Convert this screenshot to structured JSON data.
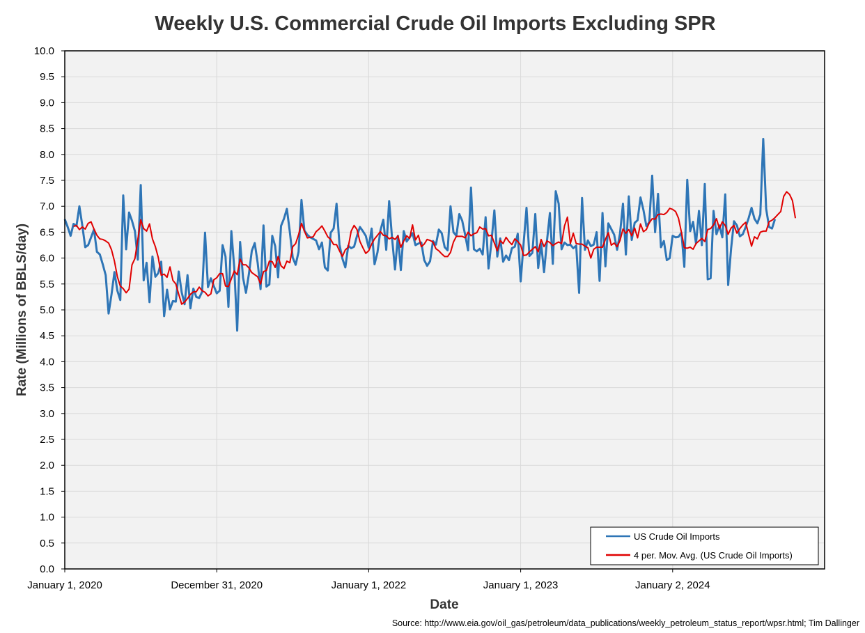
{
  "chart_data": {
    "type": "line",
    "title": "Weekly U.S. Commercial Crude Oil Imports Excluding SPR",
    "xlabel": "Date",
    "ylabel": "Rate (Millions of BBLS/day)",
    "ylim": [
      0,
      10
    ],
    "y_ticks": [
      "0.0",
      "0.5",
      "1.0",
      "1.5",
      "2.0",
      "2.5",
      "3.0",
      "3.5",
      "4.0",
      "4.5",
      "5.0",
      "5.5",
      "6.0",
      "6.5",
      "7.0",
      "7.5",
      "8.0",
      "8.5",
      "9.0",
      "9.5",
      "10.0"
    ],
    "x_tick_labels": [
      "January 1, 2020",
      "December 31, 2020",
      "January 1, 2022",
      "January 1, 2023",
      "January 2, 2024"
    ],
    "x_tick_weeks": [
      0,
      52,
      104,
      156,
      208
    ],
    "x_range_weeks": [
      0,
      260
    ],
    "grid": true,
    "legend_position": "bottom-right",
    "series": [
      {
        "name": "US Crude Oil Imports",
        "color": "#2E75B6",
        "start": "January 1, 2020",
        "interval": "weekly",
        "values": [
          6.75,
          6.6,
          6.43,
          6.66,
          6.62,
          7.0,
          6.63,
          6.21,
          6.25,
          6.4,
          6.55,
          6.12,
          6.07,
          5.88,
          5.67,
          4.93,
          5.3,
          5.73,
          5.37,
          5.19,
          7.21,
          6.17,
          6.88,
          6.72,
          6.52,
          5.97,
          7.41,
          5.57,
          5.91,
          5.15,
          6.03,
          5.64,
          5.71,
          5.93,
          4.88,
          5.39,
          5.01,
          5.17,
          5.16,
          5.74,
          5.34,
          5.11,
          5.67,
          5.03,
          5.41,
          5.25,
          5.23,
          5.35,
          6.49,
          5.44,
          5.61,
          5.46,
          5.32,
          5.37,
          6.25,
          6.03,
          5.06,
          6.52,
          5.81,
          4.6,
          6.31,
          5.62,
          5.33,
          5.69,
          6.14,
          6.29,
          5.91,
          5.4,
          6.63,
          5.45,
          5.49,
          6.43,
          6.23,
          5.63,
          6.62,
          6.76,
          6.95,
          6.51,
          6.01,
          5.87,
          6.12,
          7.12,
          6.53,
          6.45,
          6.4,
          6.37,
          6.34,
          6.17,
          6.3,
          5.82,
          5.76,
          6.49,
          6.57,
          7.05,
          6.26,
          5.99,
          5.82,
          6.24,
          6.19,
          6.22,
          6.43,
          6.6,
          6.52,
          6.43,
          6.2,
          6.57,
          5.88,
          6.11,
          6.53,
          6.74,
          6.16,
          7.1,
          6.38,
          5.78,
          6.43,
          5.77,
          6.52,
          6.32,
          6.4,
          6.48,
          6.25,
          6.28,
          6.3,
          5.96,
          5.85,
          5.94,
          6.33,
          6.26,
          6.55,
          6.48,
          6.21,
          6.15,
          7.0,
          6.5,
          6.43,
          6.85,
          6.72,
          6.45,
          6.15,
          7.36,
          6.17,
          6.13,
          6.18,
          6.07,
          6.79,
          5.8,
          6.31,
          6.92,
          6.03,
          6.38,
          5.93,
          6.05,
          5.96,
          6.19,
          6.22,
          6.47,
          5.55,
          6.28,
          6.97,
          6.04,
          6.1,
          6.85,
          5.81,
          6.28,
          5.73,
          6.33,
          6.87,
          5.89,
          7.29,
          7.05,
          6.17,
          6.3,
          6.25,
          6.26,
          6.19,
          6.24,
          5.33,
          7.16,
          6.16,
          6.34,
          6.23,
          6.26,
          6.5,
          5.56,
          6.87,
          5.84,
          6.67,
          6.56,
          6.45,
          6.16,
          6.48,
          7.05,
          6.07,
          7.19,
          6.35,
          6.68,
          6.73,
          7.17,
          6.93,
          6.62,
          6.69,
          7.59,
          6.5,
          7.24,
          6.21,
          6.33,
          5.96,
          6.0,
          6.43,
          6.4,
          6.41,
          6.49,
          5.83,
          7.51,
          6.52,
          6.7,
          6.28,
          6.91,
          6.25,
          7.43,
          5.59,
          5.61,
          6.91,
          6.46,
          6.63,
          6.4,
          7.23,
          5.48,
          6.18,
          6.71,
          6.63,
          6.42,
          6.46,
          6.6,
          6.77,
          6.97,
          6.76,
          6.67,
          6.84,
          8.3,
          6.95,
          6.6,
          6.57,
          6.75
        ]
      },
      {
        "name": "4 per. Mov. Avg. (US Crude Oil Imports)",
        "color": "#E00000",
        "start_week": 3,
        "values": [
          6.61,
          6.63,
          6.55,
          6.6,
          6.56,
          6.67,
          6.7,
          6.56,
          6.44,
          6.37,
          6.36,
          6.33,
          6.29,
          6.16,
          5.94,
          5.64,
          5.46,
          5.41,
          5.33,
          5.4,
          5.87,
          5.99,
          6.36,
          6.74,
          6.57,
          6.52,
          6.66,
          6.37,
          6.22,
          6.01,
          5.67,
          5.69,
          5.63,
          5.83,
          5.57,
          5.5,
          5.3,
          5.11,
          5.15,
          5.22,
          5.3,
          5.35,
          5.35,
          5.44,
          5.37,
          5.34,
          5.27,
          5.31,
          5.58,
          5.62,
          5.7,
          5.7,
          5.46,
          5.45,
          5.6,
          5.75,
          5.68,
          5.98,
          5.87,
          5.87,
          5.81,
          5.72,
          5.68,
          5.64,
          5.5,
          5.74,
          5.76,
          5.94,
          5.93,
          5.82,
          6.03,
          5.85,
          5.8,
          5.94,
          5.91,
          6.22,
          6.28,
          6.45,
          6.67,
          6.52,
          6.39,
          6.4,
          6.41,
          6.51,
          6.56,
          6.62,
          6.52,
          6.41,
          6.36,
          6.26,
          6.26,
          6.14,
          6.03,
          6.16,
          6.21,
          6.52,
          6.63,
          6.55,
          6.32,
          6.2,
          6.09,
          6.14,
          6.27,
          6.37,
          6.44,
          6.51,
          6.44,
          6.43,
          6.37,
          6.4,
          6.36,
          6.43,
          6.21,
          6.33,
          6.43,
          6.38,
          6.64,
          6.35,
          6.44,
          6.22,
          6.27,
          6.36,
          6.34,
          6.31,
          6.18,
          6.14,
          6.08,
          6.03,
          6.03,
          6.11,
          6.31,
          6.42,
          6.42,
          6.42,
          6.39,
          6.5,
          6.43,
          6.47,
          6.49,
          6.6,
          6.56,
          6.57,
          6.43,
          6.44,
          6.29,
          6.14,
          6.34,
          6.28,
          6.4,
          6.32,
          6.26,
          6.37,
          6.32,
          6.25,
          6.05,
          6.06,
          6.12,
          6.17,
          6.22,
          6.12,
          6.36,
          6.22,
          6.33,
          6.3,
          6.24,
          6.28,
          6.31,
          6.28,
          6.62,
          6.79,
          6.28,
          6.48,
          6.28,
          6.27,
          6.27,
          6.23,
          6.2,
          6.0,
          6.17,
          6.21,
          6.21,
          6.21,
          6.36,
          6.49,
          6.25,
          6.29,
          6.22,
          6.34,
          6.56,
          6.48,
          6.55,
          6.43,
          6.58,
          6.39,
          6.66,
          6.51,
          6.55,
          6.68,
          6.76,
          6.75,
          6.84,
          6.85,
          6.84,
          6.88,
          6.96,
          6.94,
          6.9,
          6.77,
          6.5,
          6.2,
          6.19,
          6.21,
          6.17,
          6.28,
          6.33,
          6.38,
          6.32,
          6.55,
          6.57,
          6.64,
          6.76,
          6.57,
          6.7,
          6.63,
          6.46,
          6.58,
          6.63,
          6.48,
          6.57,
          6.64,
          6.69,
          6.45,
          6.23,
          6.41,
          6.37,
          6.5,
          6.52,
          6.52,
          6.7,
          6.73,
          6.78,
          6.84,
          6.9,
          7.19,
          7.28,
          7.23,
          7.11,
          6.77
        ]
      }
    ]
  },
  "source_note": "Source: http://www.eia.gov/oil_gas/petroleum/data_publications/weekly_petroleum_status_report/wpsr.html; Tim Dallinger",
  "colors": {
    "plot_background": "#F2F2F2",
    "gridline": "#D9D9D9",
    "imports_line": "#2E75B6",
    "moving_average_line": "#E00000"
  }
}
